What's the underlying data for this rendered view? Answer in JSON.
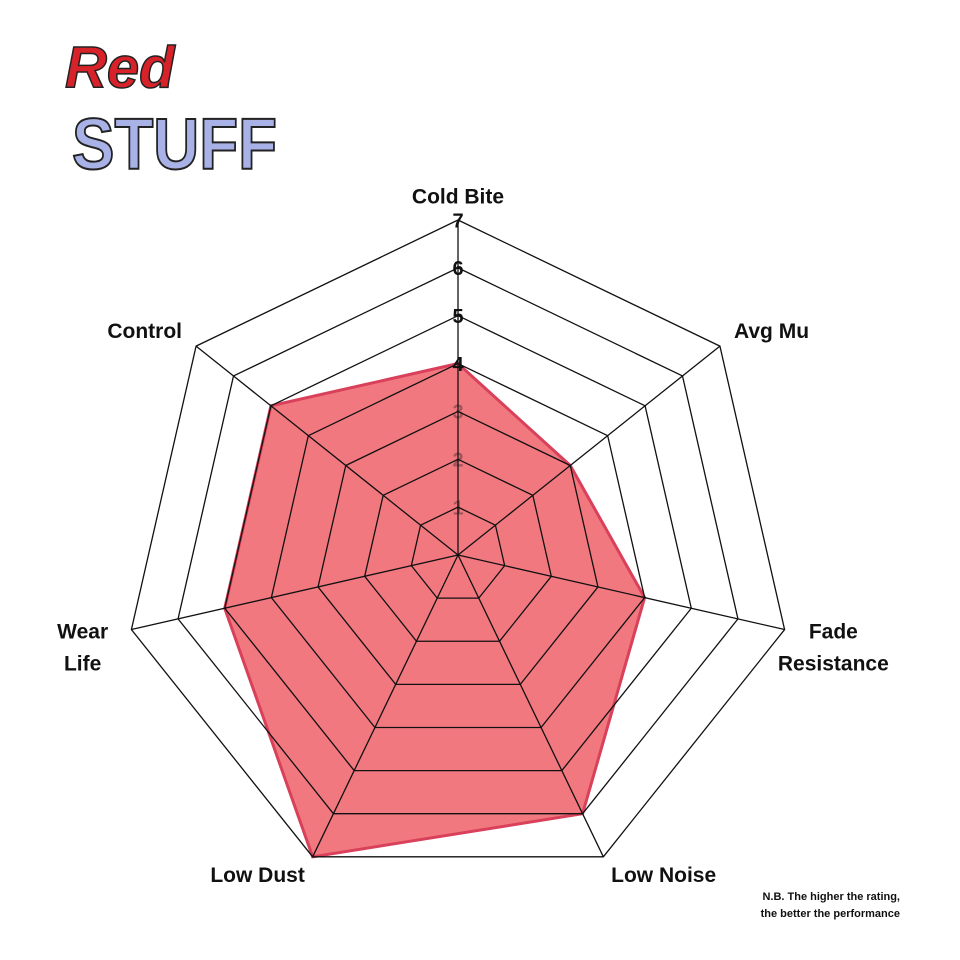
{
  "logo": {
    "line1": "Red",
    "line2": "STUFF"
  },
  "chart_data": {
    "type": "radar",
    "categories": [
      "Cold Bite",
      "Avg Mu",
      "Fade Resistance",
      "Low Noise",
      "Low Dust",
      "Wear Life",
      "Control"
    ],
    "values": [
      4,
      3,
      4,
      6,
      7,
      5,
      5
    ],
    "color": "#f0606a",
    "ylim": [
      0,
      7
    ],
    "yticks": [
      1,
      2,
      3,
      4,
      5,
      6,
      7
    ],
    "grid": true
  },
  "note": [
    "N.B. The higher the rating,",
    "the better the performance"
  ]
}
